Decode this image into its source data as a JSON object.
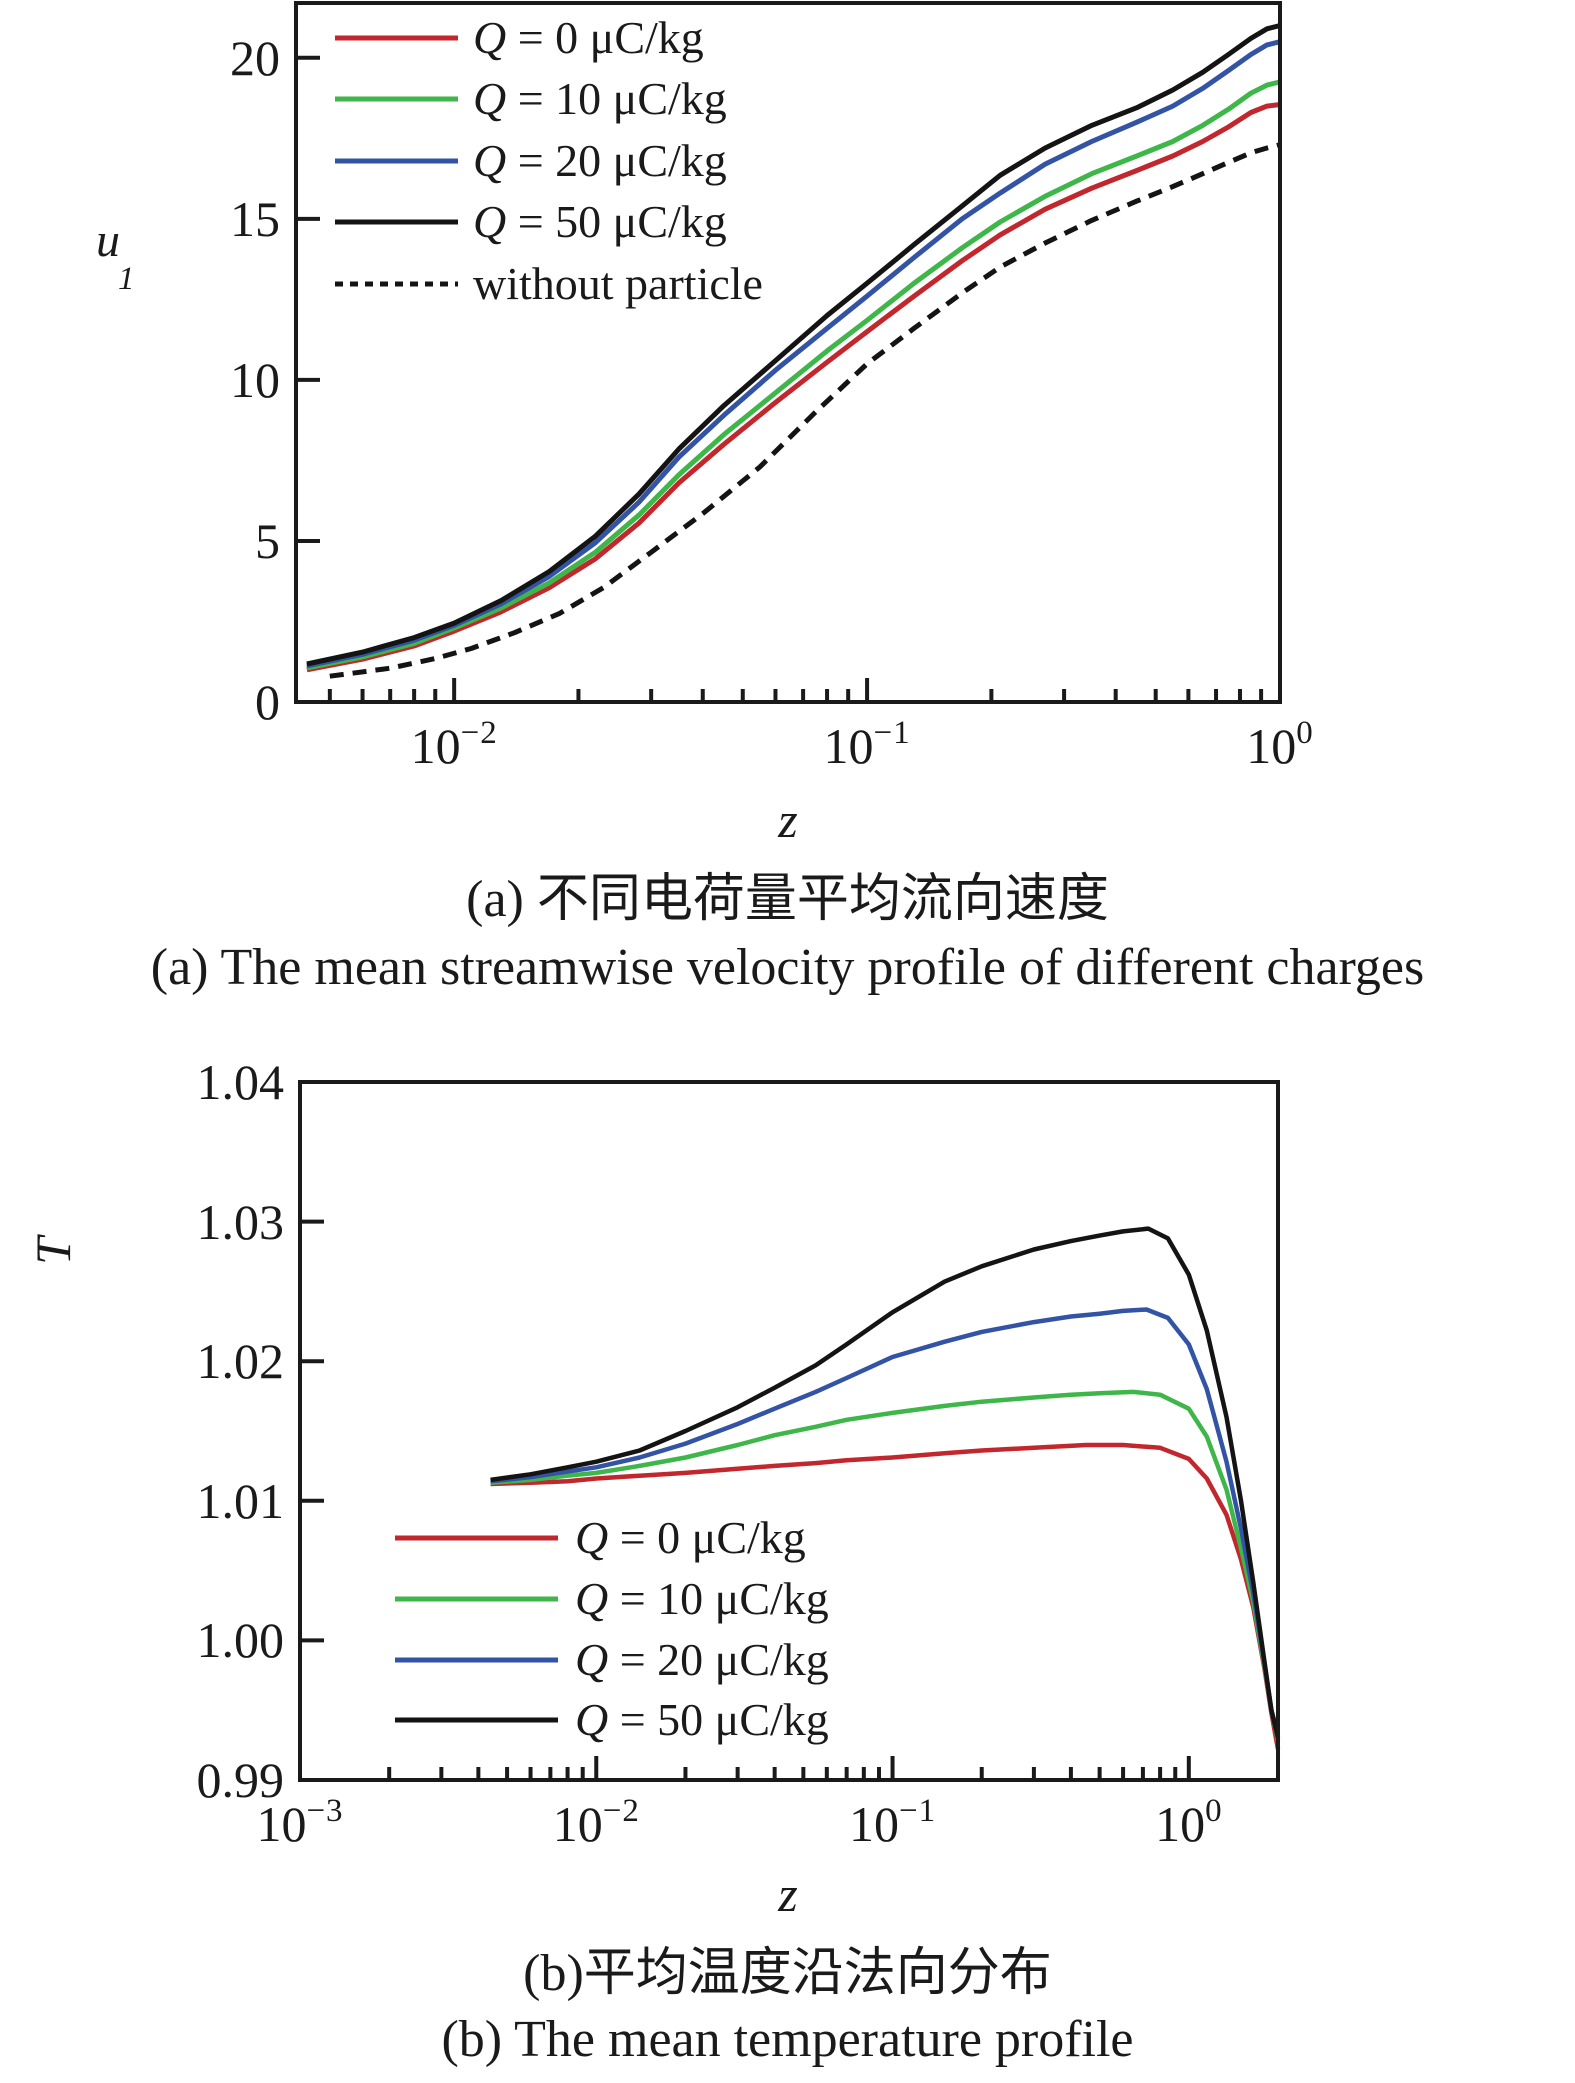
{
  "captions": {
    "a_zh": "(a) 不同电荷量平均流向速度",
    "a_en": "(a) The mean streamwise velocity profile of different charges",
    "b_zh": "(b)平均温度沿法向分布",
    "b_en": "(b) The mean temperature profile"
  },
  "colors": {
    "q0_red": "#c2272d",
    "q10_green": "#3fb649",
    "q20_blue": "#3353a5",
    "q50_black": "#141414",
    "axis_black": "#1a1a1a"
  },
  "chart_data": [
    {
      "type": "line",
      "title": "",
      "xlabel": "z",
      "ylabel": {
        "text": "u",
        "sub": "1"
      },
      "xscale": "log",
      "xlim": [
        0.00414,
        1.0
      ],
      "ylim": [
        0,
        21.7
      ],
      "grid": false,
      "legend_position": "upper-left",
      "xticks": [
        {
          "v": 0.01,
          "m": "10",
          "e": "−2"
        },
        {
          "v": 0.1,
          "m": "10",
          "e": "−1"
        },
        {
          "v": 1.0,
          "m": "10",
          "e": "0"
        }
      ],
      "yticks": [
        {
          "v": 0,
          "label": "0"
        },
        {
          "v": 5,
          "label": "5"
        },
        {
          "v": 10,
          "label": "10"
        },
        {
          "v": 15,
          "label": "15"
        },
        {
          "v": 20,
          "label": "20"
        }
      ],
      "series": [
        {
          "name": "Q = 0 μC/kg",
          "color": "#c2272d",
          "dash": "solid",
          "points": [
            [
              0.0044,
              1.0
            ],
            [
              0.006,
              1.33
            ],
            [
              0.008,
              1.74
            ],
            [
              0.01,
              2.2
            ],
            [
              0.013,
              2.8
            ],
            [
              0.017,
              3.55
            ],
            [
              0.022,
              4.45
            ],
            [
              0.028,
              5.55
            ],
            [
              0.035,
              6.8
            ],
            [
              0.045,
              8.0
            ],
            [
              0.06,
              9.3
            ],
            [
              0.08,
              10.55
            ],
            [
              0.1,
              11.5
            ],
            [
              0.13,
              12.6
            ],
            [
              0.17,
              13.7
            ],
            [
              0.21,
              14.5
            ],
            [
              0.27,
              15.3
            ],
            [
              0.35,
              15.95
            ],
            [
              0.45,
              16.5
            ],
            [
              0.55,
              16.95
            ],
            [
              0.65,
              17.4
            ],
            [
              0.75,
              17.85
            ],
            [
              0.85,
              18.3
            ],
            [
              0.93,
              18.5
            ],
            [
              1.0,
              18.55
            ]
          ]
        },
        {
          "name": "Q = 10 μC/kg",
          "color": "#3fb649",
          "dash": "solid",
          "points": [
            [
              0.0044,
              1.06
            ],
            [
              0.006,
              1.4
            ],
            [
              0.008,
              1.82
            ],
            [
              0.01,
              2.3
            ],
            [
              0.013,
              2.92
            ],
            [
              0.017,
              3.7
            ],
            [
              0.022,
              4.65
            ],
            [
              0.028,
              5.8
            ],
            [
              0.035,
              7.05
            ],
            [
              0.045,
              8.3
            ],
            [
              0.06,
              9.6
            ],
            [
              0.08,
              10.9
            ],
            [
              0.1,
              11.85
            ],
            [
              0.13,
              13.0
            ],
            [
              0.17,
              14.1
            ],
            [
              0.21,
              14.9
            ],
            [
              0.27,
              15.7
            ],
            [
              0.35,
              16.4
            ],
            [
              0.45,
              16.95
            ],
            [
              0.55,
              17.4
            ],
            [
              0.65,
              17.9
            ],
            [
              0.75,
              18.4
            ],
            [
              0.85,
              18.9
            ],
            [
              0.93,
              19.15
            ],
            [
              1.0,
              19.25
            ]
          ]
        },
        {
          "name": "Q = 20 μC/kg",
          "color": "#3353a5",
          "dash": "solid",
          "points": [
            [
              0.0044,
              1.12
            ],
            [
              0.006,
              1.48
            ],
            [
              0.008,
              1.92
            ],
            [
              0.01,
              2.38
            ],
            [
              0.013,
              3.05
            ],
            [
              0.017,
              3.9
            ],
            [
              0.022,
              4.95
            ],
            [
              0.028,
              6.2
            ],
            [
              0.035,
              7.6
            ],
            [
              0.045,
              8.9
            ],
            [
              0.06,
              10.3
            ],
            [
              0.08,
              11.6
            ],
            [
              0.1,
              12.6
            ],
            [
              0.13,
              13.8
            ],
            [
              0.17,
              15.0
            ],
            [
              0.21,
              15.8
            ],
            [
              0.27,
              16.7
            ],
            [
              0.35,
              17.4
            ],
            [
              0.45,
              18.0
            ],
            [
              0.55,
              18.5
            ],
            [
              0.65,
              19.05
            ],
            [
              0.75,
              19.6
            ],
            [
              0.85,
              20.1
            ],
            [
              0.93,
              20.4
            ],
            [
              1.0,
              20.5
            ]
          ]
        },
        {
          "name": "Q = 50 μC/kg",
          "color": "#141414",
          "dash": "solid",
          "points": [
            [
              0.0044,
              1.18
            ],
            [
              0.006,
              1.55
            ],
            [
              0.008,
              2.0
            ],
            [
              0.01,
              2.45
            ],
            [
              0.013,
              3.15
            ],
            [
              0.017,
              4.05
            ],
            [
              0.022,
              5.15
            ],
            [
              0.028,
              6.45
            ],
            [
              0.035,
              7.85
            ],
            [
              0.045,
              9.2
            ],
            [
              0.06,
              10.6
            ],
            [
              0.08,
              12.0
            ],
            [
              0.1,
              13.0
            ],
            [
              0.13,
              14.2
            ],
            [
              0.17,
              15.4
            ],
            [
              0.21,
              16.35
            ],
            [
              0.27,
              17.2
            ],
            [
              0.35,
              17.9
            ],
            [
              0.45,
              18.45
            ],
            [
              0.55,
              19.0
            ],
            [
              0.65,
              19.55
            ],
            [
              0.75,
              20.1
            ],
            [
              0.85,
              20.6
            ],
            [
              0.93,
              20.9
            ],
            [
              1.0,
              21.0
            ]
          ]
        },
        {
          "name": "without particle",
          "color": "#141414",
          "dash": "dashed",
          "points": [
            [
              0.005,
              0.8
            ],
            [
              0.007,
              1.05
            ],
            [
              0.009,
              1.35
            ],
            [
              0.011,
              1.66
            ],
            [
              0.014,
              2.15
            ],
            [
              0.018,
              2.75
            ],
            [
              0.023,
              3.55
            ],
            [
              0.03,
              4.65
            ],
            [
              0.04,
              5.85
            ],
            [
              0.055,
              7.3
            ],
            [
              0.075,
              9.0
            ],
            [
              0.1,
              10.5
            ],
            [
              0.13,
              11.6
            ],
            [
              0.17,
              12.7
            ],
            [
              0.21,
              13.5
            ],
            [
              0.27,
              14.25
            ],
            [
              0.35,
              14.95
            ],
            [
              0.45,
              15.55
            ],
            [
              0.55,
              16.0
            ],
            [
              0.65,
              16.4
            ],
            [
              0.75,
              16.75
            ],
            [
              0.85,
              17.05
            ],
            [
              0.93,
              17.2
            ],
            [
              1.0,
              17.3
            ]
          ]
        }
      ]
    },
    {
      "type": "line",
      "title": "",
      "xlabel": "z",
      "ylabel": {
        "text": "T"
      },
      "xscale": "log",
      "xlim": [
        0.001,
        2.0
      ],
      "ylim": [
        0.99,
        1.04
      ],
      "grid": false,
      "legend_position": "lower-left",
      "xticks": [
        {
          "v": 0.001,
          "m": "10",
          "e": "−3"
        },
        {
          "v": 0.01,
          "m": "10",
          "e": "−2"
        },
        {
          "v": 0.1,
          "m": "10",
          "e": "−1"
        },
        {
          "v": 1.0,
          "m": "10",
          "e": "0"
        }
      ],
      "yticks": [
        {
          "v": 0.99,
          "label": "0.99"
        },
        {
          "v": 1.0,
          "label": "1.00"
        },
        {
          "v": 1.01,
          "label": "1.01"
        },
        {
          "v": 1.02,
          "label": "1.02"
        },
        {
          "v": 1.03,
          "label": "1.03"
        },
        {
          "v": 1.04,
          "label": "1.04"
        }
      ],
      "series": [
        {
          "name": "Q = 0 μC/kg",
          "color": "#c2272d",
          "dash": "solid",
          "points": [
            [
              0.0044,
              1.0112
            ],
            [
              0.006,
              1.0113
            ],
            [
              0.008,
              1.0114
            ],
            [
              0.01,
              1.0116
            ],
            [
              0.014,
              1.0118
            ],
            [
              0.02,
              1.012
            ],
            [
              0.03,
              1.0123
            ],
            [
              0.04,
              1.0125
            ],
            [
              0.055,
              1.0127
            ],
            [
              0.07,
              1.0129
            ],
            [
              0.1,
              1.0131
            ],
            [
              0.15,
              1.0134
            ],
            [
              0.2,
              1.0136
            ],
            [
              0.3,
              1.0138
            ],
            [
              0.45,
              1.014
            ],
            [
              0.6,
              1.014
            ],
            [
              0.8,
              1.0138
            ],
            [
              1.0,
              1.013
            ],
            [
              1.15,
              1.0116
            ],
            [
              1.34,
              1.009
            ],
            [
              1.5,
              1.0058
            ],
            [
              1.65,
              1.0024
            ],
            [
              1.8,
              0.998
            ],
            [
              1.9,
              0.9948
            ],
            [
              2.0,
              0.9922
            ]
          ]
        },
        {
          "name": "Q = 10 μC/kg",
          "color": "#3fb649",
          "dash": "solid",
          "points": [
            [
              0.0044,
              1.0113
            ],
            [
              0.006,
              1.0115
            ],
            [
              0.008,
              1.0118
            ],
            [
              0.01,
              1.012
            ],
            [
              0.014,
              1.0125
            ],
            [
              0.02,
              1.0131
            ],
            [
              0.03,
              1.014
            ],
            [
              0.04,
              1.0147
            ],
            [
              0.055,
              1.0153
            ],
            [
              0.07,
              1.0158
            ],
            [
              0.1,
              1.0163
            ],
            [
              0.15,
              1.0168
            ],
            [
              0.2,
              1.0171
            ],
            [
              0.3,
              1.0174
            ],
            [
              0.4,
              1.0176
            ],
            [
              0.5,
              1.0177
            ],
            [
              0.65,
              1.0178
            ],
            [
              0.8,
              1.0176
            ],
            [
              1.0,
              1.0166
            ],
            [
              1.15,
              1.0146
            ],
            [
              1.34,
              1.0108
            ],
            [
              1.5,
              1.0066
            ],
            [
              1.65,
              1.0028
            ],
            [
              1.8,
              0.9982
            ],
            [
              1.9,
              0.995
            ],
            [
              2.0,
              0.9928
            ]
          ]
        },
        {
          "name": "Q = 20 μC/kg",
          "color": "#3353a5",
          "dash": "solid",
          "points": [
            [
              0.0044,
              1.0114
            ],
            [
              0.006,
              1.0117
            ],
            [
              0.008,
              1.0121
            ],
            [
              0.01,
              1.0124
            ],
            [
              0.014,
              1.0131
            ],
            [
              0.02,
              1.0141
            ],
            [
              0.03,
              1.0155
            ],
            [
              0.04,
              1.0166
            ],
            [
              0.055,
              1.0178
            ],
            [
              0.07,
              1.0188
            ],
            [
              0.1,
              1.0203
            ],
            [
              0.15,
              1.0214
            ],
            [
              0.2,
              1.0221
            ],
            [
              0.3,
              1.0228
            ],
            [
              0.4,
              1.0232
            ],
            [
              0.5,
              1.0234
            ],
            [
              0.6,
              1.0236
            ],
            [
              0.72,
              1.0237
            ],
            [
              0.85,
              1.0231
            ],
            [
              1.0,
              1.0212
            ],
            [
              1.15,
              1.018
            ],
            [
              1.34,
              1.0128
            ],
            [
              1.5,
              1.008
            ],
            [
              1.65,
              1.0034
            ],
            [
              1.8,
              0.9984
            ],
            [
              1.9,
              0.995
            ],
            [
              2.0,
              0.9932
            ]
          ]
        },
        {
          "name": "Q = 50 μC/kg",
          "color": "#141414",
          "dash": "solid",
          "points": [
            [
              0.0044,
              1.0115
            ],
            [
              0.006,
              1.0119
            ],
            [
              0.008,
              1.0124
            ],
            [
              0.01,
              1.0128
            ],
            [
              0.014,
              1.0136
            ],
            [
              0.02,
              1.015
            ],
            [
              0.03,
              1.0167
            ],
            [
              0.04,
              1.0181
            ],
            [
              0.055,
              1.0197
            ],
            [
              0.07,
              1.0212
            ],
            [
              0.1,
              1.0235
            ],
            [
              0.15,
              1.0257
            ],
            [
              0.2,
              1.0268
            ],
            [
              0.3,
              1.028
            ],
            [
              0.4,
              1.0286
            ],
            [
              0.5,
              1.029
            ],
            [
              0.6,
              1.0293
            ],
            [
              0.73,
              1.0295
            ],
            [
              0.85,
              1.0288
            ],
            [
              1.0,
              1.0262
            ],
            [
              1.15,
              1.0222
            ],
            [
              1.34,
              1.016
            ],
            [
              1.5,
              1.01
            ],
            [
              1.65,
              1.0042
            ],
            [
              1.8,
              0.9985
            ],
            [
              1.9,
              0.995
            ],
            [
              2.0,
              0.993
            ]
          ]
        }
      ]
    }
  ]
}
